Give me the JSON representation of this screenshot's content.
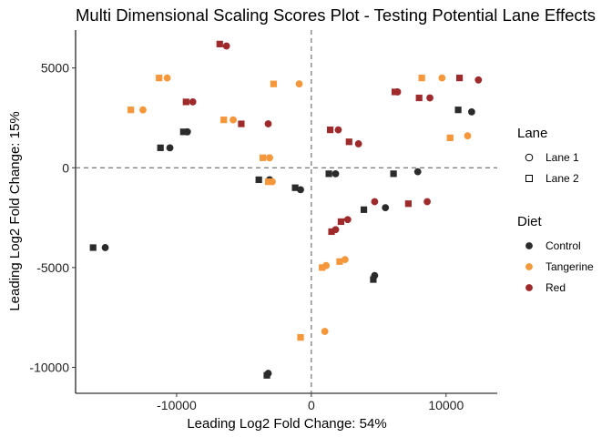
{
  "chart_data": {
    "type": "scatter",
    "title": "Multi Dimensional Scaling Scores Plot - Testing Potential Lane Effects",
    "xlabel": "Leading Log2 Fold Change: 54%",
    "ylabel": "Leading Log2 Fold Change: 15%",
    "xlim": [
      -17500,
      13800
    ],
    "ylim": [
      -11300,
      6900
    ],
    "x_ticks": [
      -10000,
      0,
      10000
    ],
    "x_tick_labels": [
      "-10000",
      "0",
      "10000"
    ],
    "y_ticks": [
      -10000,
      -5000,
      0,
      5000
    ],
    "y_tick_labels": [
      "-10000",
      "-5000",
      "0",
      "5000"
    ],
    "reference_lines": {
      "x": 0,
      "y": 0,
      "style": "dashed"
    },
    "grid": false,
    "legend_placement": "right",
    "legends": [
      {
        "title": "Lane",
        "entries": [
          {
            "label": "Lane 1",
            "shape": "circle"
          },
          {
            "label": "Lane 2",
            "shape": "square"
          }
        ]
      },
      {
        "title": "Diet",
        "entries": [
          {
            "label": "Control",
            "color": "#2b2b2b"
          },
          {
            "label": "Tangerine",
            "color": "#f5973a"
          },
          {
            "label": "Red",
            "color": "#9e2a2b"
          }
        ]
      }
    ],
    "colors": {
      "Control": "#2b2b2b",
      "Tangerine": "#f5973a",
      "Red": "#9e2a2b"
    },
    "series": [
      {
        "name": "Control",
        "lane": "Lane 1",
        "shape": "circle",
        "points": [
          [
            -15300,
            -4000
          ],
          [
            -10500,
            1000
          ],
          [
            -9200,
            1800
          ],
          [
            -3200,
            -10300
          ],
          [
            -3100,
            -600
          ],
          [
            -800,
            -1100
          ],
          [
            1800,
            -300
          ],
          [
            4700,
            -5400
          ],
          [
            5500,
            -2000
          ],
          [
            7900,
            -200
          ],
          [
            11900,
            2800
          ]
        ]
      },
      {
        "name": "Control",
        "lane": "Lane 2",
        "shape": "square",
        "points": [
          [
            -16200,
            -4000
          ],
          [
            -11200,
            1000
          ],
          [
            -9500,
            1800
          ],
          [
            -3300,
            -10400
          ],
          [
            -3900,
            -600
          ],
          [
            -1200,
            -1000
          ],
          [
            1300,
            -300
          ],
          [
            4600,
            -5600
          ],
          [
            3900,
            -2100
          ],
          [
            6100,
            -300
          ],
          [
            10900,
            2900
          ]
        ]
      },
      {
        "name": "Tangerine",
        "lane": "Lane 1",
        "shape": "circle",
        "points": [
          [
            -10700,
            4500
          ],
          [
            -12500,
            2900
          ],
          [
            -5800,
            2400
          ],
          [
            -3100,
            500
          ],
          [
            -2900,
            -700
          ],
          [
            -900,
            4200
          ],
          [
            1100,
            -4900
          ],
          [
            2500,
            -4600
          ],
          [
            1000,
            -8200
          ],
          [
            9700,
            4500
          ],
          [
            11600,
            1600
          ]
        ]
      },
      {
        "name": "Tangerine",
        "lane": "Lane 2",
        "shape": "square",
        "points": [
          [
            -11300,
            4500
          ],
          [
            -13400,
            2900
          ],
          [
            -6500,
            2400
          ],
          [
            -3600,
            500
          ],
          [
            -3200,
            -700
          ],
          [
            -2800,
            4200
          ],
          [
            800,
            -5000
          ],
          [
            2100,
            -4700
          ],
          [
            -800,
            -8500
          ],
          [
            8200,
            4500
          ],
          [
            10300,
            1500
          ]
        ]
      },
      {
        "name": "Red",
        "lane": "Lane 1",
        "shape": "circle",
        "points": [
          [
            -6300,
            6100
          ],
          [
            -8800,
            3300
          ],
          [
            -3200,
            2200
          ],
          [
            2000,
            1900
          ],
          [
            3500,
            1200
          ],
          [
            6400,
            3800
          ],
          [
            8800,
            3500
          ],
          [
            12400,
            4400
          ],
          [
            4700,
            -1700
          ],
          [
            2700,
            -2600
          ],
          [
            1800,
            -3100
          ],
          [
            8600,
            -1700
          ]
        ]
      },
      {
        "name": "Red",
        "lane": "Lane 2",
        "shape": "square",
        "points": [
          [
            -6800,
            6200
          ],
          [
            -9300,
            3300
          ],
          [
            -5200,
            2200
          ],
          [
            1400,
            1900
          ],
          [
            2800,
            1300
          ],
          [
            6200,
            3800
          ],
          [
            8000,
            3500
          ],
          [
            11000,
            4500
          ],
          [
            7200,
            -1800
          ],
          [
            2200,
            -2700
          ],
          [
            1500,
            -3200
          ]
        ]
      }
    ]
  }
}
